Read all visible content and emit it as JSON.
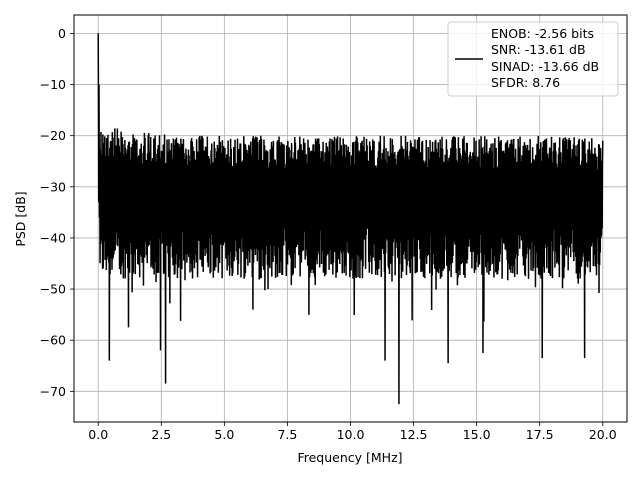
{
  "chart_data": {
    "type": "line",
    "title": "",
    "xlabel": "Frequency [MHz]",
    "ylabel": "PSD [dB]",
    "xlim": [
      -0.96,
      20.96
    ],
    "ylim": [
      -76,
      3.6
    ],
    "xticks": [
      0.0,
      2.5,
      5.0,
      7.5,
      10.0,
      12.5,
      15.0,
      17.5,
      20.0
    ],
    "xtick_labels": [
      "0.0",
      "2.5",
      "5.0",
      "7.5",
      "10.0",
      "12.5",
      "15.0",
      "17.5",
      "20.0"
    ],
    "yticks": [
      0,
      -10,
      -20,
      -30,
      -40,
      -50,
      -60,
      -70
    ],
    "ytick_labels": [
      "0",
      "−10",
      "−20",
      "−30",
      "−40",
      "−50",
      "−60",
      "−70"
    ],
    "grid": true,
    "legend_position": "top-right",
    "series": [
      {
        "name": "ENOB: -2.56 bits\nSNR: -13.61 dB\nSINAD: -13.66 dB\nSFDR: 8.76",
        "color": "#000000",
        "x_range": [
          0,
          20
        ],
        "noise_floor_range": [
          -42,
          -22
        ],
        "peaks": [
          {
            "x": 0.0,
            "y": 0.0
          },
          {
            "x": 0.03,
            "y": -14
          },
          {
            "x": 0.44,
            "y": -64
          },
          {
            "x": 2.47,
            "y": -62
          },
          {
            "x": 2.67,
            "y": -68.5
          },
          {
            "x": 11.92,
            "y": -72.5
          },
          {
            "x": 11.37,
            "y": -64
          },
          {
            "x": 13.87,
            "y": -64.5
          },
          {
            "x": 15.25,
            "y": -62.5
          },
          {
            "x": 17.6,
            "y": -63.5
          },
          {
            "x": 19.28,
            "y": -63.5
          },
          {
            "x": 1.2,
            "y": -57.5
          },
          {
            "x": 20.0,
            "y": -21
          }
        ]
      }
    ]
  },
  "legend": {
    "lines": [
      "ENOB: -2.56 bits",
      "SNR: -13.61 dB",
      "SINAD: -13.66 dB",
      "SFDR: 8.76"
    ]
  }
}
